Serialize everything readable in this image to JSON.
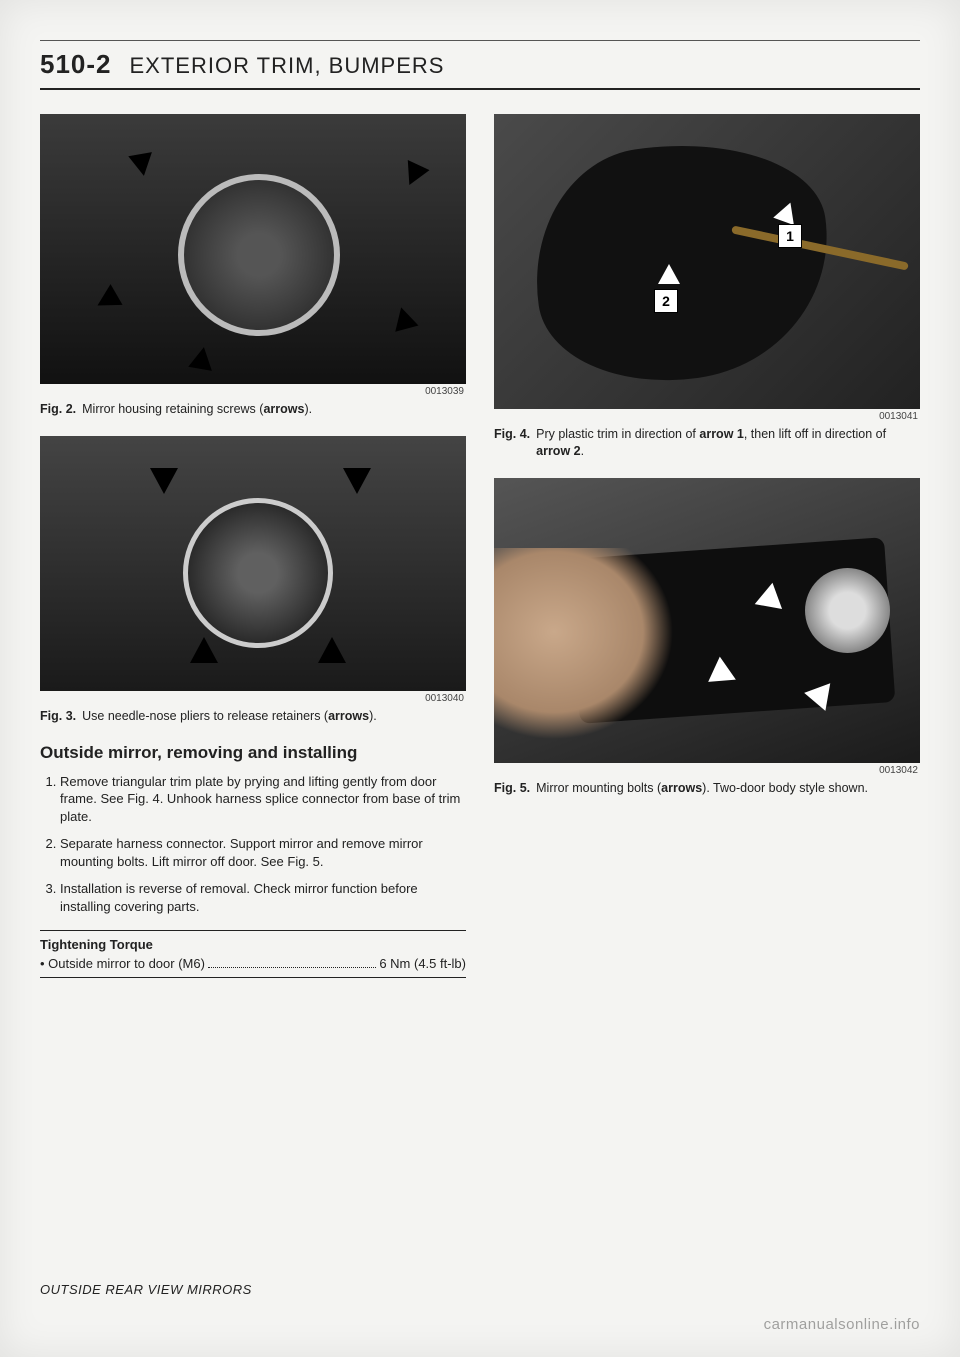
{
  "header": {
    "page_number": "510-2",
    "title": "EXTERIOR TRIM, BUMPERS"
  },
  "left": {
    "fig2": {
      "id": "0013039",
      "label": "Fig. 2.",
      "caption_html": "Mirror housing retaining screws (<b>arrows</b>)."
    },
    "fig3": {
      "id": "0013040",
      "label": "Fig. 3.",
      "caption_html": "Use needle-nose pliers to release retainers (<b>arrows</b>)."
    },
    "section_title": "Outside mirror, removing and installing",
    "steps": [
      "Remove triangular trim plate by prying and lifting gently from door frame. See Fig. 4. Unhook harness splice connector from base of trim plate.",
      "Separate harness connector. Support mirror and remove mirror mounting bolts. Lift mirror off door. See Fig. 5.",
      "Installation is reverse of removal. Check mirror function before installing covering parts."
    ],
    "torque": {
      "title": "Tightening Torque",
      "item_label": "• Outside mirror to door (M6)",
      "item_value": "6 Nm (4.5 ft-lb)"
    }
  },
  "right": {
    "fig4": {
      "id": "0013041",
      "label": "Fig. 4.",
      "caption_html": "Pry plastic trim in direction of <b>arrow 1</b>, then lift off in direction of <b>arrow 2</b>.",
      "callouts": {
        "c1": "1",
        "c2": "2"
      }
    },
    "fig5": {
      "id": "0013042",
      "label": "Fig. 5.",
      "caption_html": "Mirror mounting bolts (<b>arrows</b>). Two-door body style shown."
    }
  },
  "footer": {
    "section": "OUTSIDE REAR VIEW MIRRORS",
    "watermark": "carmanualsonline.info"
  }
}
